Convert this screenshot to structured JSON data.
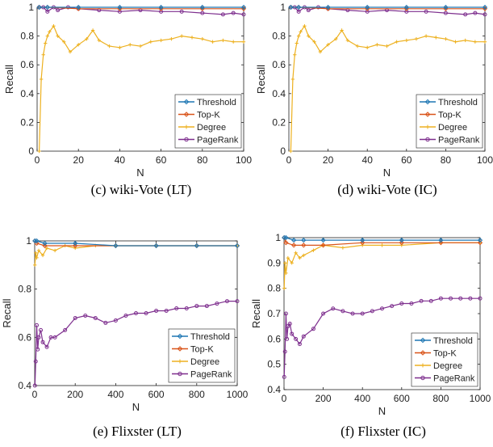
{
  "chart_data": [
    {
      "type": "line",
      "caption": "(c) wiki-Vote (LT)",
      "xlabel": "N",
      "ylabel": "Recall",
      "xlim": [
        0,
        100
      ],
      "ylim": [
        0,
        1
      ],
      "xticks": [
        0,
        20,
        40,
        60,
        80,
        100
      ],
      "yticks": [
        0,
        0.2,
        0.4,
        0.6,
        0.8,
        1
      ],
      "ytick_labels": [
        "0",
        "0.2",
        "0.4",
        "0.6",
        "0.8",
        "1"
      ],
      "grid": false,
      "legend_position": "bottom-right",
      "series": [
        {
          "name": "Threshold",
          "color": "#1f77b4",
          "marker": "diamond",
          "x": [
            1,
            5,
            20,
            40,
            60,
            80,
            100
          ],
          "values": [
            1,
            1,
            1,
            1,
            1,
            1,
            1
          ]
        },
        {
          "name": "Top-K",
          "color": "#d95319",
          "marker": "diamond",
          "x": [
            1,
            5,
            20,
            40,
            60,
            80,
            100
          ],
          "values": [
            1,
            1,
            0.99,
            0.99,
            0.99,
            0.99,
            0.99
          ]
        },
        {
          "name": "Degree",
          "color": "#edb120",
          "marker": "plus",
          "x": [
            1,
            2,
            3,
            4,
            5,
            6,
            8,
            10,
            13,
            16,
            20,
            24,
            27,
            30,
            35,
            40,
            45,
            50,
            55,
            60,
            65,
            70,
            75,
            80,
            85,
            90,
            95,
            100
          ],
          "values": [
            0,
            0.5,
            0.67,
            0.75,
            0.8,
            0.83,
            0.87,
            0.8,
            0.76,
            0.69,
            0.74,
            0.78,
            0.84,
            0.77,
            0.73,
            0.72,
            0.74,
            0.73,
            0.76,
            0.77,
            0.78,
            0.8,
            0.79,
            0.78,
            0.76,
            0.77,
            0.76,
            0.76
          ]
        },
        {
          "name": "PageRank",
          "color": "#7e2f8e",
          "marker": "circle",
          "x": [
            1,
            3,
            5,
            8,
            10,
            15,
            20,
            30,
            40,
            50,
            60,
            70,
            80,
            90,
            95,
            100
          ],
          "values": [
            1,
            1,
            0.97,
            1,
            0.98,
            1,
            0.99,
            0.98,
            0.97,
            0.98,
            0.97,
            0.97,
            0.96,
            0.95,
            0.96,
            0.95
          ]
        }
      ]
    },
    {
      "type": "line",
      "caption": "(d) wiki-Vote (IC)",
      "xlabel": "N",
      "ylabel": "Recall",
      "xlim": [
        0,
        100
      ],
      "ylim": [
        0,
        1
      ],
      "xticks": [
        0,
        20,
        40,
        60,
        80,
        100
      ],
      "yticks": [
        0,
        0.2,
        0.4,
        0.6,
        0.8,
        1
      ],
      "ytick_labels": [
        "0",
        "0.2",
        "0.4",
        "0.6",
        "0.8",
        "1"
      ],
      "grid": false,
      "legend_position": "bottom-right",
      "series": [
        {
          "name": "Threshold",
          "color": "#1f77b4",
          "marker": "diamond",
          "x": [
            1,
            5,
            20,
            40,
            60,
            80,
            100
          ],
          "values": [
            1,
            1,
            1,
            1,
            1,
            1,
            1
          ]
        },
        {
          "name": "Top-K",
          "color": "#d95319",
          "marker": "diamond",
          "x": [
            1,
            5,
            20,
            40,
            60,
            80,
            100
          ],
          "values": [
            1,
            1,
            0.99,
            0.99,
            0.99,
            0.99,
            0.99
          ]
        },
        {
          "name": "Degree",
          "color": "#edb120",
          "marker": "plus",
          "x": [
            1,
            2,
            3,
            4,
            5,
            6,
            8,
            10,
            13,
            16,
            20,
            24,
            27,
            30,
            35,
            40,
            45,
            50,
            55,
            60,
            65,
            70,
            75,
            80,
            85,
            90,
            95,
            100
          ],
          "values": [
            0,
            0.5,
            0.67,
            0.75,
            0.8,
            0.83,
            0.87,
            0.8,
            0.76,
            0.69,
            0.74,
            0.78,
            0.84,
            0.77,
            0.73,
            0.72,
            0.74,
            0.73,
            0.76,
            0.77,
            0.78,
            0.8,
            0.79,
            0.78,
            0.76,
            0.77,
            0.76,
            0.76
          ]
        },
        {
          "name": "PageRank",
          "color": "#7e2f8e",
          "marker": "circle",
          "x": [
            1,
            3,
            5,
            8,
            10,
            15,
            20,
            30,
            40,
            50,
            60,
            70,
            80,
            90,
            95,
            100
          ],
          "values": [
            1,
            1,
            0.97,
            1,
            0.98,
            1,
            0.99,
            0.98,
            0.97,
            0.98,
            0.97,
            0.97,
            0.96,
            0.95,
            0.96,
            0.95
          ]
        }
      ]
    },
    {
      "type": "line",
      "caption": "(e) Flixster (LT)",
      "xlabel": "N",
      "ylabel": "Recall",
      "xlim": [
        0,
        1000
      ],
      "ylim": [
        0.4,
        1
      ],
      "xticks": [
        0,
        200,
        400,
        600,
        800,
        1000
      ],
      "yticks": [
        0.4,
        0.6,
        0.8,
        1
      ],
      "ytick_labels": [
        "0.4",
        "0.6",
        "0.8",
        "1"
      ],
      "grid": false,
      "legend_position": "bottom-right",
      "series": [
        {
          "name": "Threshold",
          "color": "#1f77b4",
          "marker": "diamond",
          "x": [
            1,
            10,
            50,
            200,
            400,
            600,
            800,
            1000
          ],
          "values": [
            1,
            1,
            0.99,
            0.99,
            0.98,
            0.98,
            0.98,
            0.98
          ]
        },
        {
          "name": "Top-K",
          "color": "#d95319",
          "marker": "diamond",
          "x": [
            1,
            10,
            50,
            200,
            400,
            600,
            800,
            1000
          ],
          "values": [
            1,
            0.99,
            0.98,
            0.98,
            0.98,
            0.98,
            0.98,
            0.98
          ]
        },
        {
          "name": "Degree",
          "color": "#edb120",
          "marker": "plus",
          "x": [
            1,
            5,
            10,
            20,
            40,
            60,
            100,
            150,
            200,
            300,
            400,
            600,
            800,
            1000
          ],
          "values": [
            0.9,
            0.95,
            0.93,
            0.96,
            0.94,
            0.97,
            0.96,
            0.98,
            0.97,
            0.98,
            0.98,
            0.98,
            0.98,
            0.98
          ]
        },
        {
          "name": "PageRank",
          "color": "#7e2f8e",
          "marker": "circle",
          "x": [
            1,
            5,
            10,
            15,
            20,
            30,
            40,
            60,
            80,
            100,
            150,
            200,
            250,
            300,
            350,
            400,
            450,
            500,
            550,
            600,
            650,
            700,
            750,
            800,
            850,
            900,
            950,
            1000
          ],
          "values": [
            0.4,
            0.5,
            0.65,
            0.55,
            0.6,
            0.63,
            0.58,
            0.56,
            0.6,
            0.6,
            0.63,
            0.68,
            0.69,
            0.68,
            0.66,
            0.67,
            0.69,
            0.7,
            0.7,
            0.71,
            0.71,
            0.72,
            0.72,
            0.73,
            0.73,
            0.74,
            0.75,
            0.75
          ]
        }
      ]
    },
    {
      "type": "line",
      "caption": "(f) Flixster (IC)",
      "xlabel": "N",
      "ylabel": "Recall",
      "xlim": [
        0,
        1000
      ],
      "ylim": [
        0.4,
        1
      ],
      "xticks": [
        0,
        200,
        400,
        600,
        800,
        1000
      ],
      "yticks": [
        0.4,
        0.5,
        0.6,
        0.7,
        0.8,
        0.9,
        1
      ],
      "ytick_labels": [
        "0.4",
        "0.5",
        "0.6",
        "0.7",
        "0.8",
        "0.9",
        "1"
      ],
      "grid": false,
      "legend_position": "bottom-right",
      "series": [
        {
          "name": "Threshold",
          "color": "#1f77b4",
          "marker": "diamond",
          "x": [
            1,
            10,
            50,
            100,
            200,
            400,
            600,
            800,
            1000
          ],
          "values": [
            1,
            1,
            0.99,
            0.99,
            0.99,
            0.99,
            0.99,
            0.99,
            0.99
          ]
        },
        {
          "name": "Top-K",
          "color": "#d95319",
          "marker": "diamond",
          "x": [
            1,
            10,
            50,
            100,
            200,
            400,
            600,
            800,
            1000
          ],
          "values": [
            1,
            0.98,
            0.97,
            0.97,
            0.97,
            0.98,
            0.98,
            0.98,
            0.98
          ]
        },
        {
          "name": "Degree",
          "color": "#edb120",
          "marker": "plus",
          "x": [
            1,
            5,
            10,
            20,
            40,
            60,
            80,
            100,
            150,
            200,
            300,
            400,
            500,
            600,
            800,
            1000
          ],
          "values": [
            0.8,
            0.9,
            0.86,
            0.92,
            0.9,
            0.94,
            0.92,
            0.93,
            0.95,
            0.97,
            0.96,
            0.97,
            0.97,
            0.97,
            0.98,
            0.98
          ]
        },
        {
          "name": "PageRank",
          "color": "#7e2f8e",
          "marker": "circle",
          "x": [
            1,
            5,
            10,
            15,
            20,
            30,
            40,
            60,
            80,
            100,
            150,
            200,
            250,
            300,
            350,
            400,
            450,
            500,
            550,
            600,
            650,
            700,
            750,
            800,
            850,
            900,
            950,
            1000
          ],
          "values": [
            0.45,
            0.55,
            0.7,
            0.6,
            0.65,
            0.66,
            0.62,
            0.6,
            0.58,
            0.61,
            0.64,
            0.7,
            0.72,
            0.71,
            0.7,
            0.7,
            0.71,
            0.72,
            0.73,
            0.74,
            0.74,
            0.75,
            0.75,
            0.76,
            0.76,
            0.76,
            0.76,
            0.76
          ]
        }
      ]
    }
  ]
}
